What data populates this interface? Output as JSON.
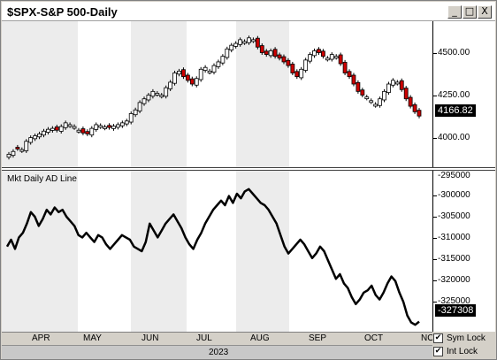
{
  "window": {
    "title": "$SPX-S&P 500-Daily",
    "buttons": {
      "minimize": "_",
      "maximize": "□",
      "close": "X"
    }
  },
  "price_pane": {
    "last_value": "4166.82",
    "y_ticks": [
      "4500.00",
      "4250.00",
      "4000.00"
    ]
  },
  "ad_pane": {
    "label": "Mkt Daily AD Line",
    "last_value": "-327308",
    "y_ticks": [
      "-295000",
      "-300000",
      "-305000",
      "-310000",
      "-315000",
      "-320000",
      "-325000"
    ]
  },
  "x_axis": {
    "months": [
      "APR",
      "MAY",
      "JUN",
      "JUL",
      "AUG",
      "SEP",
      "OCT",
      "NO"
    ],
    "year": "2023"
  },
  "options": {
    "sym_lock": "Sym Lock",
    "int_lock": "Int Lock",
    "sym_lock_checked": true,
    "int_lock_checked": true
  },
  "colors": {
    "up_candle": "#ffffff",
    "down_candle": "#cc0000",
    "ad_line": "#000000",
    "shade": "#ececec"
  },
  "chart_data": [
    {
      "type": "candlestick",
      "title": "$SPX-S&P 500-Daily",
      "ylim": [
        3890,
        4680
      ],
      "close_series": [
        3960,
        3975,
        3990,
        3985,
        4030,
        4050,
        4060,
        4070,
        4085,
        4095,
        4100,
        4090,
        4110,
        4130,
        4120,
        4110,
        4090,
        4075,
        4070,
        4100,
        4120,
        4115,
        4108,
        4105,
        4112,
        4120,
        4130,
        4140,
        4180,
        4200,
        4240,
        4260,
        4280,
        4300,
        4290,
        4280,
        4320,
        4350,
        4400,
        4410,
        4380,
        4360,
        4340,
        4370,
        4420,
        4430,
        4410,
        4440,
        4460,
        4490,
        4530,
        4550,
        4560,
        4580,
        4570,
        4590,
        4580,
        4540,
        4510,
        4500,
        4520,
        4490,
        4480,
        4460,
        4440,
        4400,
        4380,
        4420,
        4470,
        4500,
        4520,
        4510,
        4490,
        4480,
        4500,
        4490,
        4450,
        4400,
        4380,
        4340,
        4300,
        4280,
        4270,
        4250,
        4230,
        4260,
        4300,
        4340,
        4360,
        4350,
        4310,
        4260,
        4220,
        4190,
        4166.82
      ],
      "down_days": [
        2,
        11,
        17,
        18,
        23,
        40,
        41,
        42,
        57,
        58,
        59,
        61,
        62,
        63,
        64,
        65,
        66,
        71,
        72,
        76,
        77,
        78,
        79,
        80,
        81,
        90,
        91,
        92,
        93,
        94
      ]
    },
    {
      "type": "line",
      "title": "Mkt Daily AD Line",
      "ylim": [
        -329500,
        -294500
      ],
      "values": [
        -311000,
        -309500,
        -311500,
        -309000,
        -308000,
        -306000,
        -303500,
        -304500,
        -306500,
        -305000,
        -303000,
        -304000,
        -302500,
        -303500,
        -303000,
        -304500,
        -305500,
        -306500,
        -308500,
        -309000,
        -308000,
        -309000,
        -310000,
        -308500,
        -309000,
        -310500,
        -311500,
        -310500,
        -309500,
        -308500,
        -309000,
        -309500,
        -311000,
        -311500,
        -312000,
        -310000,
        -306000,
        -307500,
        -309000,
        -307500,
        -306000,
        -305000,
        -304000,
        -305500,
        -307000,
        -309000,
        -310500,
        -311500,
        -309500,
        -308000,
        -306000,
        -304500,
        -303000,
        -302000,
        -301000,
        -302000,
        -300000,
        -301500,
        -299500,
        -300500,
        -299000,
        -298500,
        -299500,
        -300500,
        -301500,
        -302000,
        -303000,
        -304500,
        -306000,
        -308500,
        -311000,
        -312500,
        -311500,
        -310500,
        -309500,
        -310500,
        -312000,
        -313500,
        -312500,
        -311000,
        -312000,
        -314000,
        -316000,
        -318000,
        -317000,
        -319000,
        -320000,
        -322000,
        -323500,
        -322500,
        -321000,
        -320500,
        -319500,
        -321500,
        -322500,
        -321000,
        -319000,
        -317500,
        -318500,
        -321000,
        -323000,
        -326000,
        -327500,
        -328000,
        -327308
      ]
    }
  ]
}
